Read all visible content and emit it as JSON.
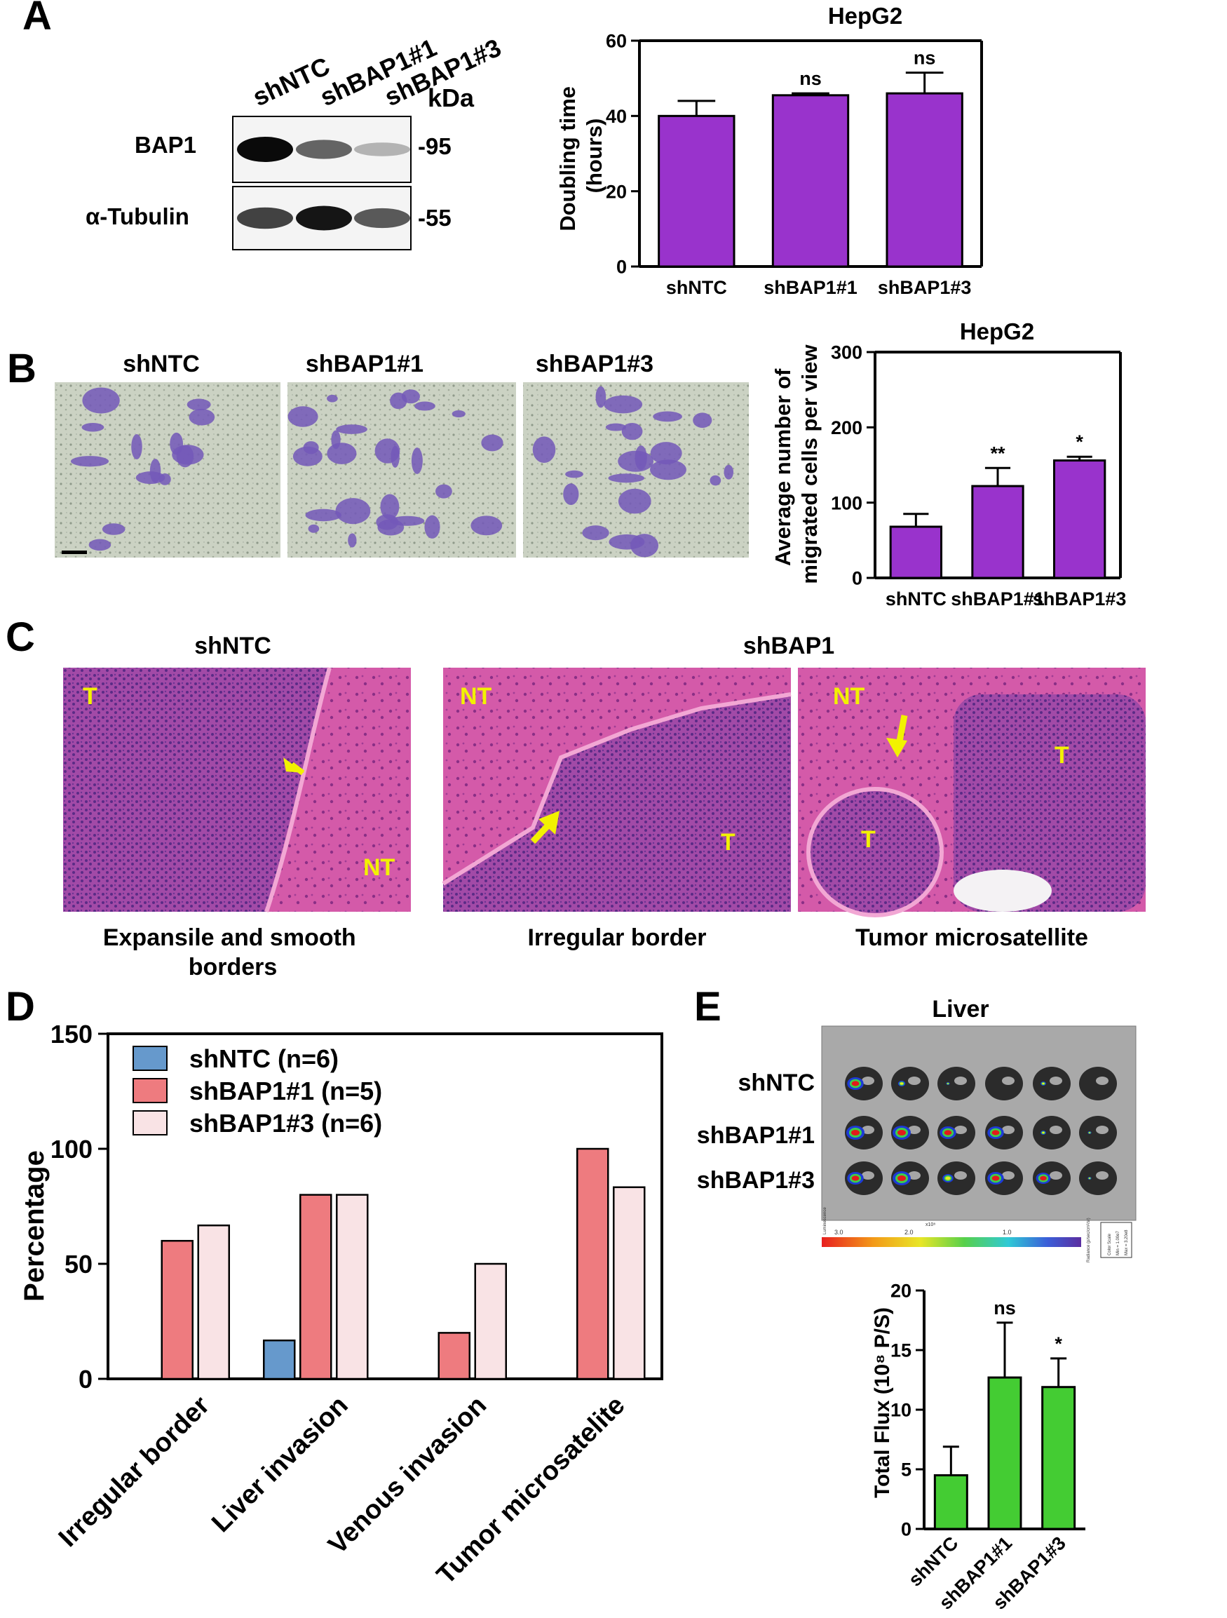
{
  "panel_letters": [
    "A",
    "B",
    "C",
    "D",
    "E"
  ],
  "panelA": {
    "western_blot": {
      "lanes": [
        "shNTC",
        "shBAP1#1",
        "shBAP1#3"
      ],
      "kda_label": "kDa",
      "rows": [
        {
          "label": "BAP1",
          "kda": "-95",
          "band_intensity": [
            1.0,
            0.6,
            0.25
          ]
        },
        {
          "label": "α-Tubulin",
          "kda": "-55",
          "band_intensity": [
            0.75,
            0.95,
            0.65
          ]
        }
      ]
    }
  },
  "panelB": {
    "image_labels": [
      "shNTC",
      "shBAP1#1",
      "shBAP1#3"
    ]
  },
  "panelC": {
    "left_title": "shNTC",
    "right_title": "shBAP1",
    "images": [
      {
        "caption": "Expansile and smooth borders",
        "labels": [
          "T",
          "NT"
        ]
      },
      {
        "caption": "Irregular border",
        "labels": [
          "NT",
          "T"
        ]
      },
      {
        "caption": "Tumor microsatellite",
        "labels": [
          "NT",
          "T",
          "T"
        ]
      }
    ]
  },
  "panelE": {
    "title": "Liver",
    "rows": [
      "shNTC",
      "shBAP1#1",
      "shBAP1#3"
    ],
    "colorbar_ticks": [
      "3.0",
      "2.0",
      "1.0"
    ],
    "colorbar_unit": "x10⁸",
    "colorbar_left_label": "Luminescence",
    "colorbar_right_label": "Radiance (p/sec/cm²/sr)",
    "color_scale_box": [
      "Color Scale",
      "Min = 1.00e7",
      "Max = 3.20e8"
    ]
  },
  "colors": {
    "purple": "#9933cc",
    "green": "#44cc33",
    "blue": "#6699cc",
    "red": "#ee7b7f",
    "pink": "#f9e3e5"
  },
  "chart_data": [
    {
      "id": "A-doubling",
      "type": "bar",
      "title": "HepG2",
      "categories": [
        "shNTC",
        "shBAP1#1",
        "shBAP1#3"
      ],
      "values": [
        40,
        45.5,
        46
      ],
      "errors": [
        4,
        0.5,
        5.5
      ],
      "annotations": [
        "",
        "ns",
        "ns"
      ],
      "ylabel": "Doubling time (hours)",
      "ylim": [
        0,
        60
      ],
      "yticks": [
        0,
        20,
        40,
        60
      ],
      "color": "#9933cc"
    },
    {
      "id": "B-migration",
      "type": "bar",
      "title": "HepG2",
      "categories": [
        "shNTC",
        "shBAP1#1",
        "shBAP1#3"
      ],
      "values": [
        68,
        122,
        156
      ],
      "errors": [
        17,
        24,
        5
      ],
      "annotations": [
        "",
        "**",
        "*"
      ],
      "ylabel": "Average number of migrated cells per view",
      "ylim": [
        0,
        300
      ],
      "yticks": [
        0,
        100,
        200,
        300
      ],
      "color": "#9933cc"
    },
    {
      "id": "D-percentage",
      "type": "bar",
      "categories": [
        "Irregular border",
        "Liver invasion",
        "Venous invasion",
        "Tumor microsatelite"
      ],
      "series": [
        {
          "name": "shNTC (n=6)",
          "values": [
            0,
            16.7,
            0,
            0
          ],
          "color": "#6699cc"
        },
        {
          "name": "shBAP1#1 (n=5)",
          "values": [
            60,
            80,
            20,
            100
          ],
          "color": "#ee7b7f"
        },
        {
          "name": "shBAP1#3 (n=6)",
          "values": [
            66.7,
            80,
            50,
            83.3
          ],
          "color": "#f9e3e5"
        }
      ],
      "ylabel": "Percentage",
      "ylim": [
        0,
        150
      ],
      "yticks": [
        0,
        50,
        100,
        150
      ],
      "legend": "top-left"
    },
    {
      "id": "E-flux",
      "type": "bar",
      "categories": [
        "shNTC",
        "shBAP1#1",
        "shBAP1#3"
      ],
      "values": [
        4.5,
        12.7,
        11.9
      ],
      "errors": [
        2.4,
        4.6,
        2.4
      ],
      "annotations": [
        "",
        "ns",
        "*"
      ],
      "ylabel": "Total Flux (10⁸ P/S)",
      "ylim": [
        0,
        20
      ],
      "yticks": [
        0,
        5,
        10,
        15,
        20
      ],
      "color": "#44cc33"
    }
  ]
}
